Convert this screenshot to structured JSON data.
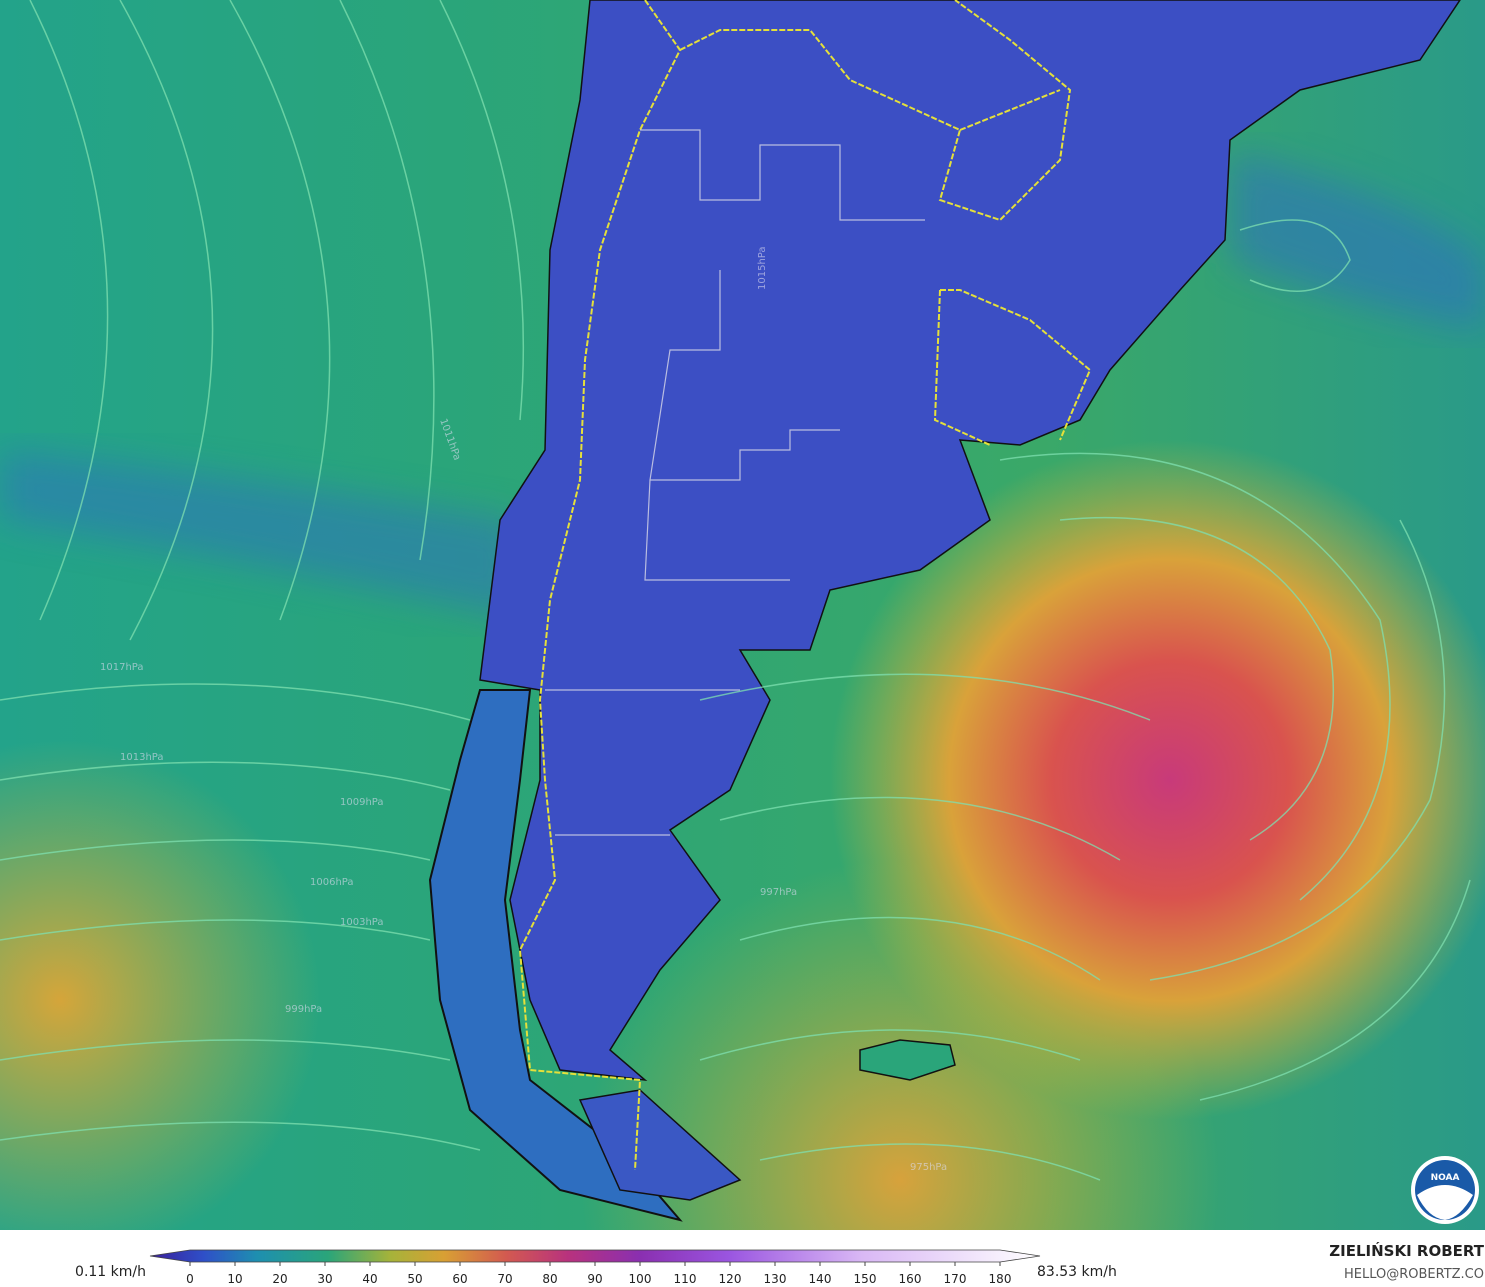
{
  "map": {
    "isobar_labels": [
      "1015hPa",
      "1011hPa",
      "1017hPa",
      "1009hPa",
      "1006hPa",
      "1003hPa",
      "999hPa",
      "997hPa",
      "975hPa",
      "1013hPa"
    ]
  },
  "legend": {
    "min_label": "0.11 km/h",
    "max_label": "83.53 km/h",
    "ticks": [
      0,
      10,
      20,
      30,
      40,
      50,
      60,
      70,
      80,
      90,
      100,
      110,
      120,
      130,
      140,
      150,
      160,
      170,
      180
    ]
  },
  "credits": {
    "author": "ZIELIŃSKI ROBERT",
    "email": "HELLO@ROBERTZ.CO",
    "logo": "NOAA"
  }
}
